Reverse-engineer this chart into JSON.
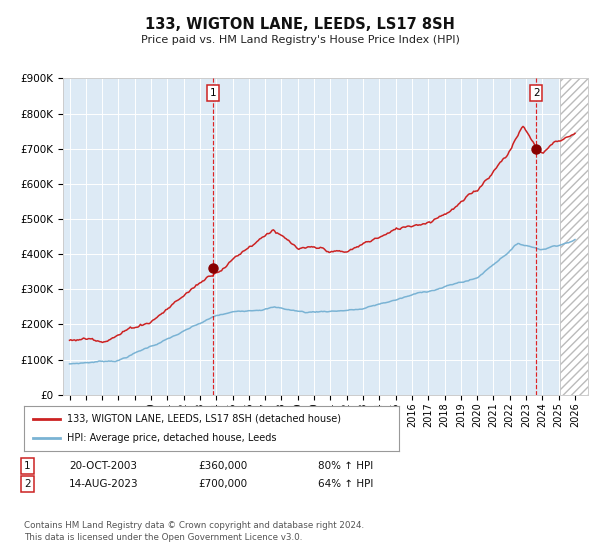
{
  "title": "133, WIGTON LANE, LEEDS, LS17 8SH",
  "subtitle": "Price paid vs. HM Land Registry's House Price Index (HPI)",
  "ylim": [
    0,
    900000
  ],
  "yticks": [
    0,
    100000,
    200000,
    300000,
    400000,
    500000,
    600000,
    700000,
    800000,
    900000
  ],
  "ytick_labels": [
    "£0",
    "£100K",
    "£200K",
    "£300K",
    "£400K",
    "£500K",
    "£600K",
    "£700K",
    "£800K",
    "£900K"
  ],
  "hpi_color": "#7ab3d4",
  "price_color": "#cc2222",
  "bg_color": "#ddeaf5",
  "grid_color": "#ffffff",
  "transaction1_x": 2003.8,
  "transaction1_y": 360000,
  "transaction2_x": 2023.62,
  "transaction2_y": 700000,
  "transaction1_date": "20-OCT-2003",
  "transaction1_price": "£360,000",
  "transaction1_pct": "80% ↑ HPI",
  "transaction2_date": "14-AUG-2023",
  "transaction2_price": "£700,000",
  "transaction2_pct": "64% ↑ HPI",
  "legend_house": "133, WIGTON LANE, LEEDS, LS17 8SH (detached house)",
  "legend_hpi": "HPI: Average price, detached house, Leeds",
  "footer1": "Contains HM Land Registry data © Crown copyright and database right 2024.",
  "footer2": "This data is licensed under the Open Government Licence v3.0.",
  "xlim_left": 1994.6,
  "xlim_right": 2026.8,
  "hatch_start": 2025.08
}
